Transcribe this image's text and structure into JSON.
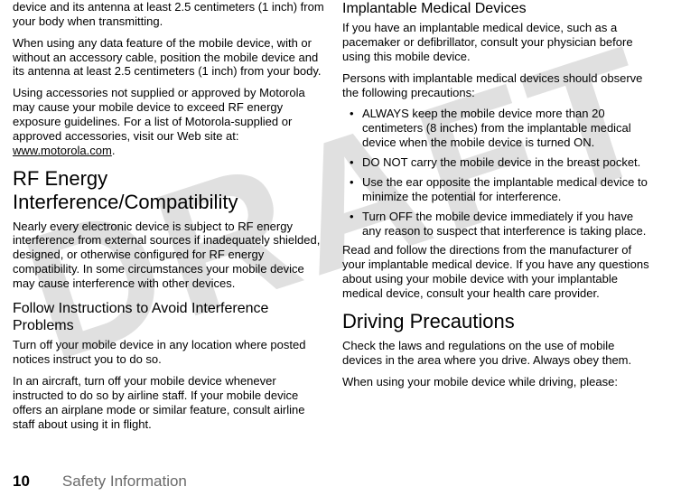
{
  "watermark": "DRAFT",
  "left": {
    "p1": "device and its antenna at least 2.5 centimeters (1 inch) from your body when transmitting.",
    "p2": "When using any data feature of the mobile device, with or without an accessory cable, position the mobile device and its antenna at least 2.5 centimeters (1 inch) from your body.",
    "p3_a": "Using accessories not supplied or approved by Motorola may cause your mobile device to exceed RF energy exposure guidelines. For a list of Motorola-supplied or approved accessories, visit our Web site at: ",
    "p3_link": "www.motorola.com",
    "p3_b": ".",
    "h1": "RF Energy Interference/Compatibility",
    "p4": "Nearly every electronic device is subject to RF energy interference from external sources if inadequately shielded, designed, or otherwise configured for RF energy compatibility. In some circumstances your mobile device may cause interference with other devices.",
    "h2": "Follow Instructions to Avoid Interference Problems",
    "p5": "Turn off your mobile device in any location where posted notices instruct you to do so.",
    "p6": "In an aircraft, turn off your mobile device whenever instructed to do so by airline staff. If your mobile device offers an airplane mode or similar feature, consult airline staff about using it in flight."
  },
  "right": {
    "h2a": "Implantable Medical Devices",
    "p1": "If you have an implantable medical device, such as a pacemaker or defibrillator, consult your physician before using this mobile device.",
    "p2": "Persons with implantable medical devices should observe the following precautions:",
    "bullets": [
      "ALWAYS keep the mobile device more than 20 centimeters (8 inches) from the implantable medical device when the mobile device is turned ON.",
      "DO NOT carry the mobile device in the breast pocket.",
      "Use the ear opposite the implantable medical device to minimize the potential for interference.",
      "Turn OFF the mobile device immediately if you have any reason to suspect that interference is taking place."
    ],
    "p3": "Read and follow the directions from the manufacturer of your implantable medical device. If you have any questions about using your mobile device with your implantable medical device, consult your health care provider.",
    "h1": "Driving Precautions",
    "p4": "Check the laws and regulations on the use of mobile devices in the area where you drive. Always obey them.",
    "p5": "When using your mobile device while driving, please:"
  },
  "footer": {
    "page": "10",
    "title": "Safety Information"
  }
}
